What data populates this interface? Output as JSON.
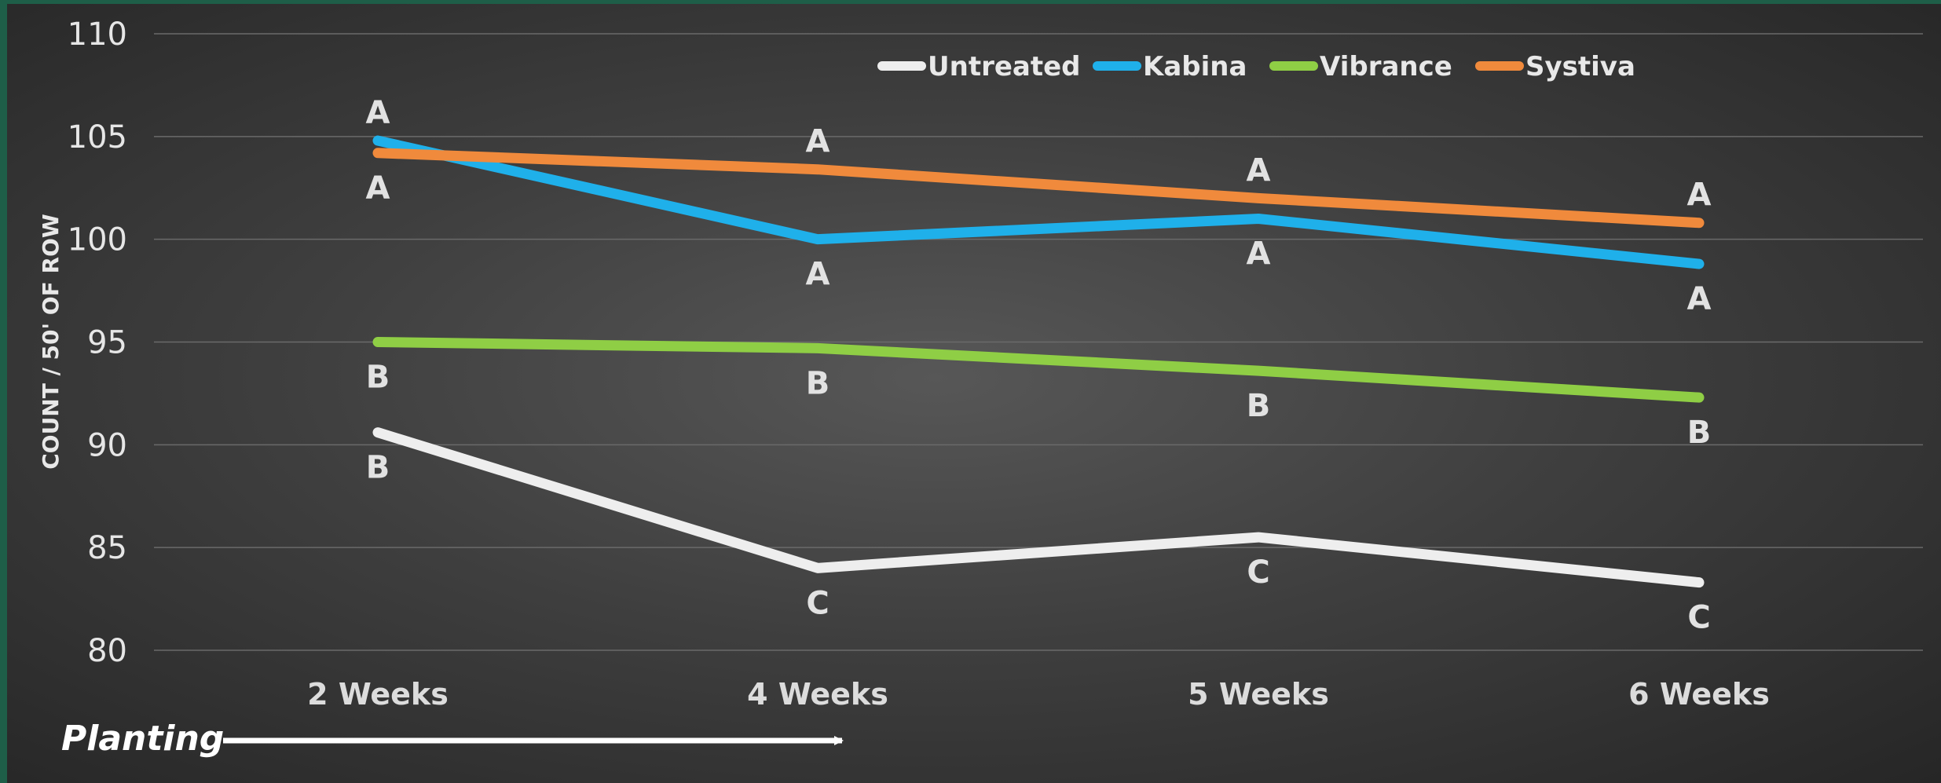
{
  "chart_data": {
    "type": "line",
    "title": "",
    "xlabel": "",
    "ylabel": "COUNT / 50' OF ROW",
    "ylim": [
      80,
      110
    ],
    "yticks": [
      80,
      85,
      90,
      95,
      100,
      105,
      110
    ],
    "grid": true,
    "legend_position": "top",
    "categories": [
      "2 Weeks",
      "4 Weeks",
      "5 Weeks",
      "6 Weeks"
    ],
    "series": [
      {
        "name": "Untreated",
        "color": "#eeeeee",
        "values": [
          90.6,
          84.0,
          85.5,
          83.3
        ],
        "letters": [
          "B",
          "C",
          "C",
          "C"
        ],
        "letter_side": "below"
      },
      {
        "name": "Kabina",
        "color": "#1fb0ea",
        "values": [
          104.8,
          100.0,
          101.0,
          98.8
        ],
        "letters": [
          "A",
          "A",
          "A",
          "A"
        ],
        "letter_side": "mixed"
      },
      {
        "name": "Vibrance",
        "color": "#8fce45",
        "values": [
          95.0,
          94.7,
          93.6,
          92.3
        ],
        "letters": [
          "B",
          "B",
          "B",
          "B"
        ],
        "letter_side": "below"
      },
      {
        "name": "Systiva",
        "color": "#f08a3c",
        "values": [
          104.2,
          103.4,
          102.0,
          100.8
        ],
        "letters": [
          "A",
          "A",
          "A",
          "A"
        ],
        "letter_side": "mixed"
      }
    ],
    "annotation": {
      "text": "Planting"
    }
  }
}
